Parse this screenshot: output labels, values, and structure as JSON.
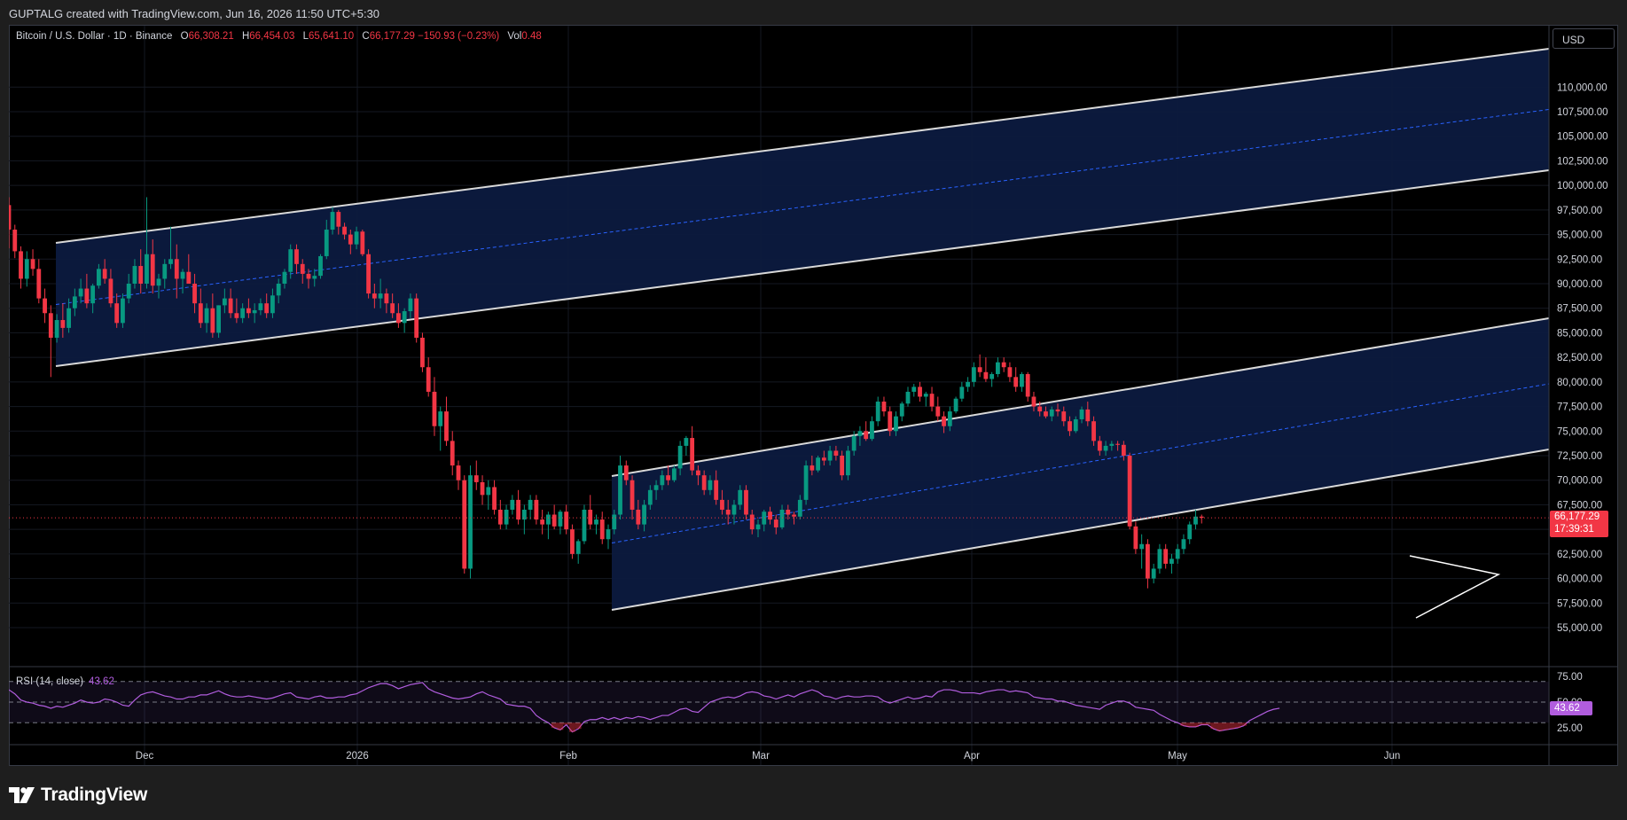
{
  "header": {
    "attribution": "GUPTALG created with TradingView.com, Jun 16, 2026 11:50 UTC+5:30"
  },
  "legend": {
    "symbol": "Bitcoin / U.S. Dollar · 1D · Binance",
    "o_label": "O",
    "o_value": "66,308.21",
    "h_label": "H",
    "h_value": "66,454.03",
    "l_label": "L",
    "l_value": "65,641.10",
    "c_label": "C",
    "c_value": "66,177.29",
    "change": "−150.93 (−0.23%)",
    "vol_label": "Vol",
    "vol_value": "0.48"
  },
  "currency_button": "USD",
  "last_price": {
    "value": "66,177.29",
    "countdown": "17:39:31"
  },
  "rsi": {
    "title": "RSI (14, close)",
    "value": "43.62"
  },
  "footer": {
    "brand": "TradingView"
  },
  "colors": {
    "up": "#089981",
    "down": "#f23645",
    "channel_fill": "#0c1a3f",
    "rsi_line": "#b15dde",
    "midline": "#2962ff"
  },
  "chart_data": {
    "type": "candlestick",
    "interval": "1D",
    "price_axis": {
      "ticks": [
        "110,000.00",
        "107,500.00",
        "105,000.00",
        "102,500.00",
        "100,000.00",
        "97,500.00",
        "95,000.00",
        "92,500.00",
        "90,000.00",
        "87,500.00",
        "85,000.00",
        "82,500.00",
        "80,000.00",
        "77,500.00",
        "75,000.00",
        "72,500.00",
        "70,000.00",
        "67,500.00",
        "65,000.00",
        "62,500.00",
        "60,000.00",
        "57,500.00",
        "55,000.00"
      ],
      "range": [
        54000,
        111500
      ]
    },
    "time_axis": {
      "labels": [
        "Dec",
        "2026",
        "Feb",
        "Mar",
        "Apr",
        "May",
        "Jun"
      ]
    },
    "rsi_axis": {
      "ticks": [
        "75.00",
        "50.00",
        "25.00"
      ],
      "bands": [
        30,
        50,
        70
      ]
    },
    "ohlc": [
      [
        98000,
        98800,
        93600,
        95500
      ],
      [
        95500,
        96000,
        92600,
        93300
      ],
      [
        93300,
        93800,
        89500,
        90500
      ],
      [
        90500,
        93300,
        89700,
        92500
      ],
      [
        92500,
        93500,
        90800,
        91500
      ],
      [
        91500,
        92500,
        88000,
        88500
      ],
      [
        88500,
        89500,
        86000,
        87000
      ],
      [
        87000,
        87800,
        80500,
        84500
      ],
      [
        84500,
        86900,
        84000,
        86300
      ],
      [
        86300,
        88000,
        84500,
        85500
      ],
      [
        85500,
        88500,
        85000,
        87500
      ],
      [
        87500,
        89500,
        86700,
        88700
      ],
      [
        88700,
        90500,
        88000,
        89500
      ],
      [
        89500,
        91000,
        87500,
        88000
      ],
      [
        88000,
        90000,
        87000,
        89800
      ],
      [
        89800,
        92000,
        89500,
        91500
      ],
      [
        91500,
        92500,
        90000,
        90500
      ],
      [
        90500,
        91500,
        87600,
        88000
      ],
      [
        88000,
        89000,
        85500,
        86000
      ],
      [
        86000,
        89000,
        85500,
        88500
      ],
      [
        88500,
        91000,
        88000,
        90000
      ],
      [
        90000,
        92500,
        89500,
        91800
      ],
      [
        91800,
        93500,
        89000,
        90000
      ],
      [
        90000,
        98800,
        89500,
        93000
      ],
      [
        93000,
        94500,
        89000,
        89800
      ],
      [
        89800,
        91000,
        88500,
        90500
      ],
      [
        90500,
        92500,
        89500,
        92000
      ],
      [
        92000,
        95800,
        91500,
        92500
      ],
      [
        92500,
        94000,
        88500,
        90500
      ],
      [
        90500,
        91500,
        89000,
        91200
      ],
      [
        91200,
        93000,
        90000,
        90000
      ],
      [
        90000,
        91000,
        87000,
        88000
      ],
      [
        88000,
        89500,
        85500,
        86000
      ],
      [
        86000,
        88000,
        85000,
        87500
      ],
      [
        87500,
        89000,
        84500,
        85000
      ],
      [
        85000,
        87800,
        84500,
        87800
      ],
      [
        87800,
        89500,
        87000,
        88500
      ],
      [
        88500,
        89500,
        86500,
        87000
      ],
      [
        87000,
        88500,
        86000,
        86500
      ],
      [
        86500,
        88000,
        86000,
        87500
      ],
      [
        87500,
        88500,
        86500,
        87000
      ],
      [
        87000,
        88000,
        86000,
        87300
      ],
      [
        87300,
        88500,
        86800,
        88000
      ],
      [
        88000,
        89000,
        86500,
        87000
      ],
      [
        87000,
        89500,
        86500,
        88800
      ],
      [
        88800,
        90500,
        88000,
        90000
      ],
      [
        90000,
        91500,
        89500,
        91200
      ],
      [
        91200,
        94000,
        90500,
        93500
      ],
      [
        93500,
        94000,
        91000,
        92000
      ],
      [
        92000,
        92500,
        90000,
        91000
      ],
      [
        91000,
        91500,
        89500,
        90500
      ],
      [
        90500,
        91500,
        89700,
        90800
      ],
      [
        90800,
        93000,
        90500,
        92800
      ],
      [
        92800,
        96500,
        92500,
        95500
      ],
      [
        95500,
        97800,
        95000,
        97300
      ],
      [
        97300,
        97500,
        95000,
        95800
      ],
      [
        95800,
        96200,
        94500,
        95000
      ],
      [
        95000,
        95500,
        93000,
        94000
      ],
      [
        94000,
        95800,
        93500,
        95300
      ],
      [
        95300,
        95500,
        92800,
        93000
      ],
      [
        93000,
        93500,
        88500,
        89000
      ],
      [
        89000,
        90000,
        87500,
        88500
      ],
      [
        88500,
        90500,
        87500,
        89000
      ],
      [
        89000,
        89500,
        87000,
        88000
      ],
      [
        88000,
        89000,
        86500,
        87000
      ],
      [
        87000,
        88000,
        85500,
        86000
      ],
      [
        86000,
        87500,
        85000,
        87200
      ],
      [
        87200,
        89000,
        86500,
        88500
      ],
      [
        88500,
        89000,
        84000,
        84500
      ],
      [
        84500,
        85000,
        81000,
        81500
      ],
      [
        81500,
        82500,
        78500,
        79000
      ],
      [
        79000,
        80500,
        74500,
        75500
      ],
      [
        75500,
        77500,
        73000,
        77000
      ],
      [
        77000,
        78500,
        73500,
        74000
      ],
      [
        74000,
        75000,
        70500,
        71500
      ],
      [
        71500,
        72000,
        69000,
        70000
      ],
      [
        70000,
        70500,
        60500,
        61000
      ],
      [
        61000,
        71500,
        60000,
        70500
      ],
      [
        70500,
        72000,
        69000,
        69800
      ],
      [
        69800,
        70500,
        67500,
        68500
      ],
      [
        68500,
        70000,
        67000,
        69300
      ],
      [
        69300,
        70000,
        66500,
        67000
      ],
      [
        67000,
        68000,
        65000,
        65500
      ],
      [
        65500,
        67500,
        65000,
        67000
      ],
      [
        67000,
        68500,
        66500,
        68000
      ],
      [
        68000,
        69000,
        65500,
        66000
      ],
      [
        66000,
        67500,
        64500,
        67000
      ],
      [
        67000,
        68500,
        66000,
        68000
      ],
      [
        68000,
        68500,
        65500,
        66000
      ],
      [
        66000,
        67000,
        64500,
        65500
      ],
      [
        65500,
        66800,
        64000,
        66500
      ],
      [
        66500,
        67500,
        65000,
        65300
      ],
      [
        65300,
        67000,
        64500,
        66800
      ],
      [
        66800,
        67500,
        64500,
        65000
      ],
      [
        65000,
        65500,
        62000,
        62500
      ],
      [
        62500,
        64000,
        61500,
        63800
      ],
      [
        63800,
        67500,
        63500,
        67000
      ],
      [
        67000,
        68500,
        65000,
        65500
      ],
      [
        65500,
        66500,
        64500,
        66000
      ],
      [
        66000,
        66800,
        63500,
        64000
      ],
      [
        64000,
        65500,
        63000,
        65000
      ],
      [
        65000,
        67000,
        64500,
        66500
      ],
      [
        66500,
        72500,
        66000,
        71500
      ],
      [
        71500,
        72000,
        69500,
        70000
      ],
      [
        70000,
        70500,
        66000,
        67000
      ],
      [
        67000,
        68000,
        65000,
        65500
      ],
      [
        65500,
        68000,
        64800,
        67500
      ],
      [
        67500,
        69500,
        67000,
        69000
      ],
      [
        69000,
        70000,
        68000,
        69500
      ],
      [
        69500,
        71000,
        69000,
        70500
      ],
      [
        70500,
        71500,
        69500,
        70000
      ],
      [
        70000,
        71500,
        69800,
        71200
      ],
      [
        71200,
        74000,
        70500,
        73500
      ],
      [
        73500,
        74500,
        72500,
        74300
      ],
      [
        74300,
        75500,
        70500,
        71000
      ],
      [
        71000,
        71500,
        69500,
        70500
      ],
      [
        70500,
        71000,
        68500,
        69000
      ],
      [
        69000,
        70500,
        68500,
        70000
      ],
      [
        70000,
        71000,
        67500,
        68000
      ],
      [
        68000,
        69000,
        66500,
        67000
      ],
      [
        67000,
        68000,
        65500,
        66500
      ],
      [
        66500,
        68000,
        65500,
        67500
      ],
      [
        67500,
        69500,
        67000,
        69000
      ],
      [
        69000,
        69500,
        66000,
        66500
      ],
      [
        66500,
        67000,
        64500,
        65000
      ],
      [
        65000,
        66000,
        64200,
        65500
      ],
      [
        65500,
        67000,
        64800,
        66800
      ],
      [
        66800,
        67300,
        65500,
        66000
      ],
      [
        66000,
        66500,
        64500,
        65200
      ],
      [
        65200,
        67500,
        65000,
        67000
      ],
      [
        67000,
        67500,
        66000,
        66500
      ],
      [
        66500,
        66800,
        65500,
        66300
      ],
      [
        66300,
        68500,
        66000,
        68000
      ],
      [
        68000,
        72000,
        67500,
        71500
      ],
      [
        71500,
        72500,
        70500,
        71000
      ],
      [
        71000,
        72500,
        70800,
        72300
      ],
      [
        72300,
        73000,
        71500,
        72000
      ],
      [
        72000,
        73500,
        71500,
        73000
      ],
      [
        73000,
        73500,
        72000,
        72500
      ],
      [
        72500,
        73000,
        70000,
        70500
      ],
      [
        70500,
        73500,
        70000,
        73000
      ],
      [
        73000,
        75000,
        72500,
        74500
      ],
      [
        74500,
        75500,
        73500,
        75000
      ],
      [
        75000,
        76000,
        74000,
        74200
      ],
      [
        74200,
        76500,
        74000,
        76000
      ],
      [
        76000,
        78500,
        75500,
        78000
      ],
      [
        78000,
        78500,
        76500,
        77000
      ],
      [
        77000,
        77500,
        74500,
        75000
      ],
      [
        75000,
        77000,
        74500,
        76500
      ],
      [
        76500,
        78000,
        76000,
        77800
      ],
      [
        77800,
        79500,
        77500,
        79000
      ],
      [
        79000,
        79800,
        78500,
        79500
      ],
      [
        79500,
        80000,
        78000,
        78500
      ],
      [
        78500,
        79000,
        77500,
        78800
      ],
      [
        78800,
        79500,
        77000,
        77500
      ],
      [
        77500,
        78500,
        76000,
        76500
      ],
      [
        76500,
        77000,
        74800,
        75500
      ],
      [
        75500,
        77500,
        75000,
        77000
      ],
      [
        77000,
        78500,
        76800,
        78300
      ],
      [
        78300,
        80000,
        78000,
        79500
      ],
      [
        79500,
        80500,
        79000,
        80000
      ],
      [
        80000,
        82000,
        79500,
        81500
      ],
      [
        81500,
        82800,
        80500,
        81000
      ],
      [
        81000,
        82500,
        80000,
        80300
      ],
      [
        80300,
        81000,
        79500,
        80800
      ],
      [
        80800,
        82500,
        80500,
        82000
      ],
      [
        82000,
        82500,
        81000,
        81500
      ],
      [
        81500,
        82000,
        80000,
        80500
      ],
      [
        80500,
        81500,
        79000,
        79500
      ],
      [
        79500,
        81000,
        79000,
        80800
      ],
      [
        80800,
        81000,
        78000,
        78500
      ],
      [
        78500,
        79000,
        77000,
        77500
      ],
      [
        77500,
        78000,
        76500,
        77000
      ],
      [
        77000,
        77500,
        76300,
        76500
      ],
      [
        76500,
        77500,
        76000,
        77200
      ],
      [
        77200,
        77800,
        76500,
        77000
      ],
      [
        77000,
        77500,
        75500,
        76000
      ],
      [
        76000,
        76500,
        74500,
        75000
      ],
      [
        75000,
        76500,
        74800,
        76200
      ],
      [
        76200,
        77500,
        75800,
        77200
      ],
      [
        77200,
        78000,
        75500,
        76000
      ],
      [
        76000,
        76500,
        73500,
        74000
      ],
      [
        74000,
        74500,
        72500,
        73000
      ],
      [
        73000,
        74000,
        72500,
        73500
      ],
      [
        73500,
        74000,
        73000,
        73700
      ],
      [
        73700,
        74000,
        73000,
        73600
      ],
      [
        73600,
        74000,
        72000,
        72500
      ],
      [
        72500,
        72800,
        65000,
        65300
      ],
      [
        65300,
        65800,
        62500,
        63000
      ],
      [
        63000,
        64500,
        61000,
        63500
      ],
      [
        63500,
        64000,
        59000,
        60000
      ],
      [
        60000,
        61500,
        59500,
        61000
      ],
      [
        61000,
        63500,
        60500,
        63000
      ],
      [
        63000,
        63500,
        61000,
        61500
      ],
      [
        61500,
        62500,
        60500,
        62000
      ],
      [
        62000,
        63500,
        61500,
        63000
      ],
      [
        63000,
        64500,
        62500,
        64000
      ],
      [
        64000,
        65800,
        63500,
        65500
      ],
      [
        65500,
        67000,
        65000,
        66300
      ],
      [
        66300,
        66500,
        65600,
        66177
      ]
    ],
    "rsi_values": [
      62,
      58,
      52,
      50,
      49,
      47,
      46,
      44,
      46,
      45,
      47,
      49,
      52,
      50,
      49,
      50,
      53,
      52,
      50,
      47,
      46,
      52,
      57,
      59,
      60,
      58,
      56,
      55,
      53,
      53,
      55,
      55,
      57,
      57,
      59,
      61,
      58,
      56,
      55,
      55,
      56,
      55,
      54,
      53,
      54,
      56,
      58,
      59,
      55,
      54,
      53,
      55,
      56,
      54,
      54,
      55,
      55,
      57,
      58,
      61,
      64,
      66,
      68,
      68,
      66,
      63,
      65,
      67,
      68,
      69,
      63,
      60,
      58,
      56,
      54,
      53,
      54,
      55,
      58,
      60,
      57,
      55,
      53,
      48,
      47,
      46,
      46,
      44,
      37,
      33,
      30,
      25,
      23,
      28,
      21,
      24,
      31,
      33,
      33,
      35,
      33,
      35,
      33,
      35,
      34,
      36,
      35,
      33,
      35,
      37,
      37,
      40,
      43,
      44,
      41,
      40,
      45,
      50,
      52,
      54,
      55,
      54,
      56,
      59,
      60,
      59,
      56,
      55,
      53,
      55,
      57,
      55,
      58,
      60,
      62,
      60,
      56,
      55,
      53,
      55,
      56,
      55,
      55,
      56,
      56,
      55,
      51,
      49,
      51,
      53,
      55,
      53,
      54,
      56,
      55,
      60,
      62,
      62,
      61,
      59,
      59,
      59,
      58,
      60,
      61,
      62,
      62,
      60,
      61,
      60,
      59,
      55,
      54,
      53,
      53,
      51,
      51,
      49,
      47,
      46,
      45,
      44,
      43,
      47,
      49,
      51,
      51,
      49,
      45,
      44,
      43,
      42,
      38,
      35,
      32,
      30,
      27,
      26,
      26,
      28,
      28,
      24,
      22,
      23,
      24,
      25,
      27,
      32,
      35,
      38,
      41,
      43,
      44
    ]
  }
}
